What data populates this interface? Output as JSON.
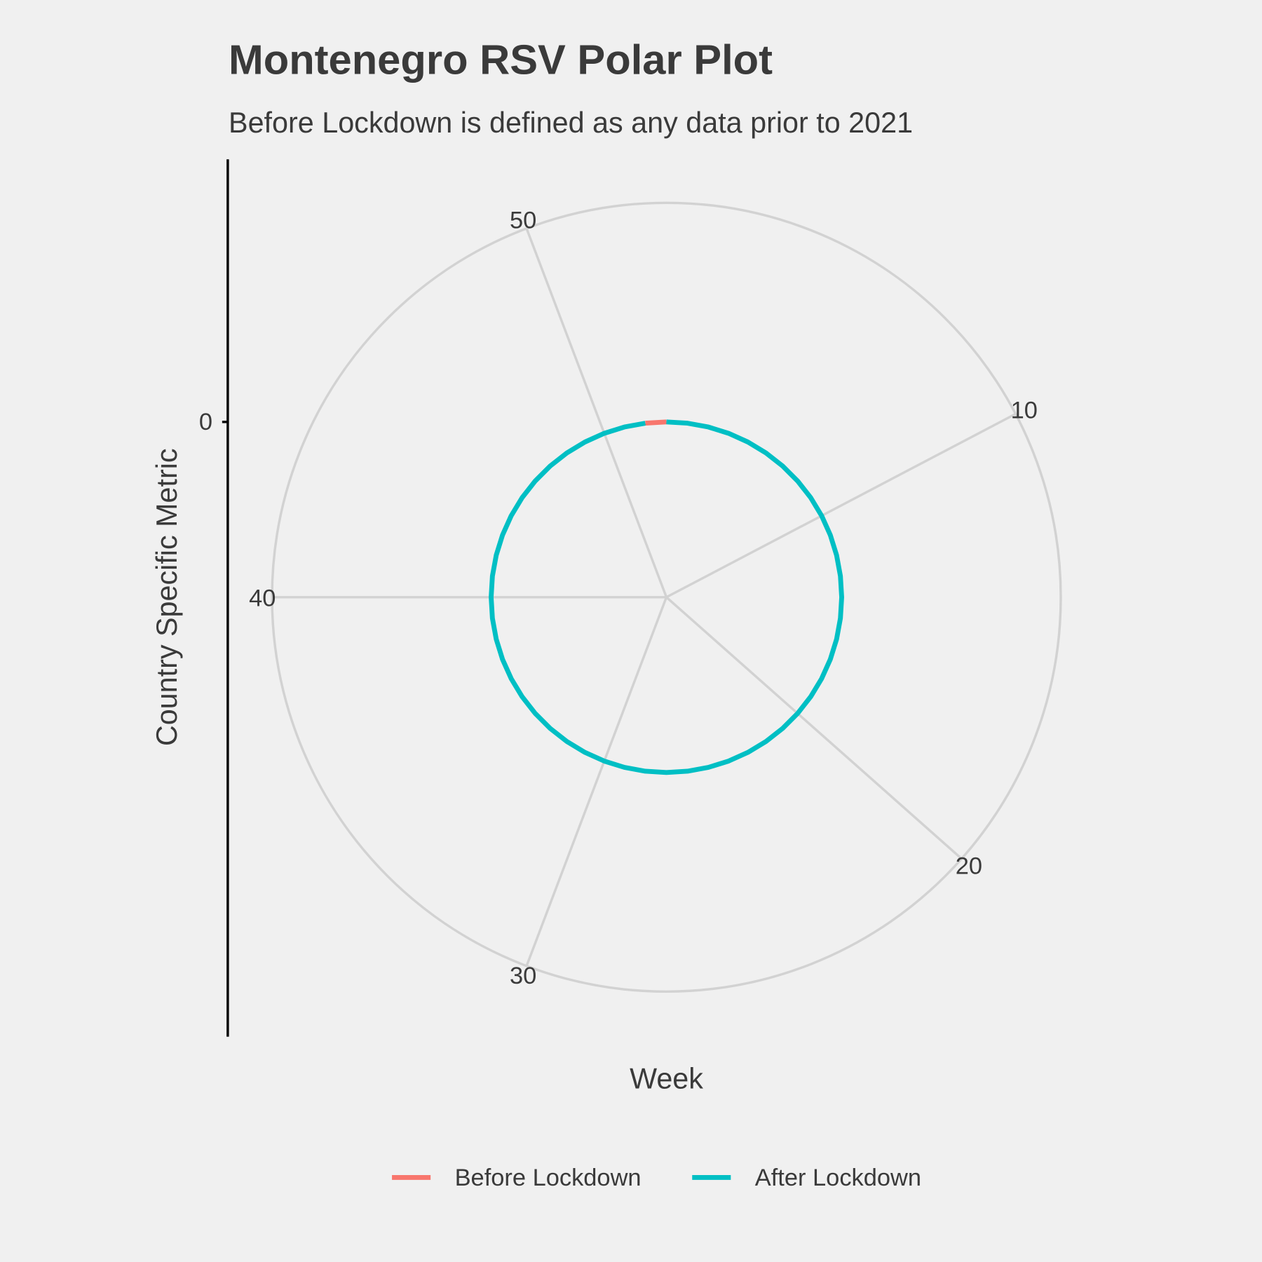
{
  "chart_data": {
    "type": "polar-line",
    "title": "Montenegro RSV Polar Plot",
    "subtitle": "Before Lockdown is defined as any data prior to 2021",
    "x_label": "Week",
    "y_label": "Country Specific Metric",
    "xlim": [
      1,
      53
    ],
    "xticks": [
      10,
      20,
      30,
      40,
      50
    ],
    "ylim": [
      -1,
      1.25
    ],
    "yticks": [
      0
    ],
    "grid": true,
    "legend_position": "bottom",
    "series": [
      {
        "name": "Before Lockdown",
        "color": "#f8766d",
        "x": [
          52,
          53
        ],
        "values": [
          0,
          0
        ]
      },
      {
        "name": "After Lockdown",
        "color": "#00bfc4",
        "x": [
          1,
          2,
          3,
          4,
          5,
          6,
          7,
          8,
          9,
          10,
          11,
          12,
          13,
          14,
          15,
          16,
          17,
          18,
          19,
          20,
          21,
          22,
          23,
          24,
          25,
          26,
          27,
          28,
          29,
          30,
          31,
          32,
          33,
          34,
          35,
          36,
          37,
          38,
          39,
          40,
          41,
          42,
          43,
          44,
          45,
          46,
          47,
          48,
          49,
          50,
          51,
          52
        ],
        "values": [
          0,
          0,
          0,
          0,
          0,
          0,
          0,
          0,
          0,
          0,
          0,
          0,
          0,
          0,
          0,
          0,
          0,
          0,
          0,
          0,
          0,
          0,
          0,
          0,
          0,
          0,
          0,
          0,
          0,
          0,
          0,
          0,
          0,
          0,
          0,
          0,
          0,
          0,
          0,
          0,
          0,
          0,
          0,
          0,
          0,
          0,
          0,
          0,
          0,
          0,
          0,
          0
        ]
      }
    ]
  }
}
